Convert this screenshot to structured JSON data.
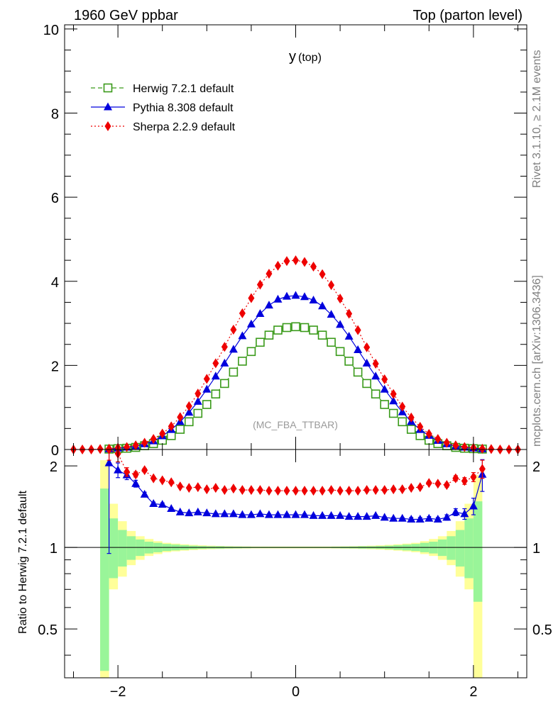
{
  "header": {
    "left": "1960 GeV ppbar",
    "right": "Top (parton level)"
  },
  "side_labels": {
    "rivet": "Rivet 3.1.10, ≥ 2.1M events",
    "mcplots": "mcplots.cern.ch [arXiv:1306.3436]"
  },
  "watermark": "(MC_FBA_TTBAR)",
  "colors": {
    "herwig": "#3a9a1a",
    "pythia": "#0000dd",
    "sherpa": "#ee0000",
    "band_inner": "#99f599",
    "band_outer": "#ffff99"
  },
  "chart_data": [
    {
      "type": "line",
      "title": "y",
      "title_sub": "(top)",
      "xlim": [
        -2.6,
        2.6
      ],
      "ylim": [
        0,
        10.1
      ],
      "yticks": [
        0,
        2,
        4,
        6,
        8,
        10
      ],
      "ytick_labels": [
        "0",
        "2",
        "4",
        "6",
        "8",
        "10"
      ],
      "legend": "top-left",
      "series": [
        {
          "name": "Herwig 7.2.1 default",
          "marker": "open-square",
          "line": "dashed",
          "x": [
            -2.1,
            -2.0,
            -1.9,
            -1.8,
            -1.7,
            -1.6,
            -1.5,
            -1.4,
            -1.3,
            -1.2,
            -1.1,
            -1.0,
            -0.9,
            -0.8,
            -0.7,
            -0.6,
            -0.5,
            -0.4,
            -0.3,
            -0.2,
            -0.1,
            0.0,
            0.1,
            0.2,
            0.3,
            0.4,
            0.5,
            0.6,
            0.7,
            0.8,
            0.9,
            1.0,
            1.1,
            1.2,
            1.3,
            1.4,
            1.5,
            1.6,
            1.7,
            1.8,
            1.9,
            2.0,
            2.1
          ],
          "y": [
            0.01,
            0.02,
            0.03,
            0.05,
            0.09,
            0.14,
            0.22,
            0.33,
            0.48,
            0.66,
            0.86,
            1.07,
            1.32,
            1.57,
            1.84,
            2.1,
            2.33,
            2.55,
            2.72,
            2.84,
            2.9,
            2.92,
            2.9,
            2.84,
            2.72,
            2.55,
            2.33,
            2.1,
            1.84,
            1.57,
            1.32,
            1.07,
            0.86,
            0.66,
            0.48,
            0.33,
            0.22,
            0.14,
            0.09,
            0.05,
            0.03,
            0.02,
            0.01
          ]
        },
        {
          "name": "Pythia 8.308 default",
          "marker": "filled-triangle",
          "line": "solid",
          "x": [
            -2.1,
            -2.0,
            -1.9,
            -1.8,
            -1.7,
            -1.6,
            -1.5,
            -1.4,
            -1.3,
            -1.2,
            -1.1,
            -1.0,
            -0.9,
            -0.8,
            -0.7,
            -0.6,
            -0.5,
            -0.4,
            -0.3,
            -0.2,
            -0.1,
            0.0,
            0.1,
            0.2,
            0.3,
            0.4,
            0.5,
            0.6,
            0.7,
            0.8,
            0.9,
            1.0,
            1.1,
            1.2,
            1.3,
            1.4,
            1.5,
            1.6,
            1.7,
            1.8,
            1.9,
            2.0,
            2.1
          ],
          "y": [
            0.01,
            0.03,
            0.05,
            0.08,
            0.13,
            0.2,
            0.32,
            0.47,
            0.66,
            0.88,
            1.14,
            1.43,
            1.74,
            2.05,
            2.38,
            2.7,
            2.98,
            3.23,
            3.43,
            3.57,
            3.64,
            3.66,
            3.63,
            3.55,
            3.41,
            3.21,
            2.97,
            2.69,
            2.37,
            2.05,
            1.74,
            1.43,
            1.15,
            0.89,
            0.66,
            0.47,
            0.33,
            0.21,
            0.13,
            0.08,
            0.05,
            0.03,
            0.01
          ]
        },
        {
          "name": "Sherpa 2.2.9 default",
          "marker": "filled-diamond",
          "line": "dotted",
          "x": [
            -2.5,
            -2.4,
            -2.3,
            -2.2,
            -2.1,
            -2.0,
            -1.9,
            -1.8,
            -1.7,
            -1.6,
            -1.5,
            -1.4,
            -1.3,
            -1.2,
            -1.1,
            -1.0,
            -0.9,
            -0.8,
            -0.7,
            -0.6,
            -0.5,
            -0.4,
            -0.3,
            -0.2,
            -0.1,
            0.0,
            0.1,
            0.2,
            0.3,
            0.4,
            0.5,
            0.6,
            0.7,
            0.8,
            0.9,
            1.0,
            1.1,
            1.2,
            1.3,
            1.4,
            1.5,
            1.6,
            1.7,
            1.8,
            1.9,
            2.0,
            2.1,
            2.2,
            2.3,
            2.4,
            2.5
          ],
          "y": [
            0.0,
            0.0,
            0.0,
            0.01,
            0.02,
            0.04,
            0.06,
            0.1,
            0.16,
            0.25,
            0.38,
            0.55,
            0.77,
            1.03,
            1.33,
            1.68,
            2.05,
            2.44,
            2.85,
            3.24,
            3.6,
            3.92,
            4.18,
            4.37,
            4.48,
            4.5,
            4.46,
            4.35,
            4.17,
            3.91,
            3.59,
            3.23,
            2.84,
            2.43,
            2.04,
            1.67,
            1.32,
            1.02,
            0.76,
            0.54,
            0.37,
            0.25,
            0.16,
            0.1,
            0.06,
            0.04,
            0.02,
            0.01,
            0.0,
            0.0,
            0.0
          ]
        }
      ]
    },
    {
      "type": "line",
      "ylabel": "Ratio to Herwig 7.2.1 default",
      "xlim": [
        -2.6,
        2.6
      ],
      "ylim": [
        0.33,
        2.3
      ],
      "yscale": "log",
      "reference_line": 1,
      "yticks": [
        0.5,
        1,
        2
      ],
      "ytick_labels": [
        "0.5",
        "1",
        "2"
      ],
      "xticks": [
        -2,
        0,
        2
      ],
      "xtick_labels": [
        "−2",
        "0",
        "2"
      ],
      "bands": {
        "x_edges": [
          -2.2,
          -2.1,
          -2.0,
          -1.9,
          -1.8,
          -1.7,
          -1.6,
          -1.5,
          -1.4,
          -1.3,
          -1.2,
          -1.1,
          -1.0,
          -0.9,
          -0.8,
          -0.7,
          -0.6,
          -0.5,
          -0.4,
          -0.3,
          -0.2,
          -0.1,
          0.0,
          0.1,
          0.2,
          0.3,
          0.4,
          0.5,
          0.6,
          0.7,
          0.8,
          0.9,
          1.0,
          1.1,
          1.2,
          1.3,
          1.4,
          1.5,
          1.6,
          1.7,
          1.8,
          1.9,
          2.0,
          2.1,
          2.2
        ],
        "inner_lo": [
          0.35,
          0.77,
          0.85,
          0.9,
          0.93,
          0.95,
          0.96,
          0.97,
          0.975,
          0.98,
          0.985,
          0.988,
          0.99,
          0.99,
          0.992,
          0.993,
          0.994,
          0.995,
          0.995,
          0.995,
          0.995,
          0.995,
          0.995,
          0.995,
          0.995,
          0.995,
          0.994,
          0.993,
          0.992,
          0.99,
          0.99,
          0.988,
          0.985,
          0.98,
          0.975,
          0.97,
          0.96,
          0.95,
          0.93,
          0.9,
          0.85,
          0.77,
          0.63
        ],
        "inner_hi": [
          1.65,
          1.28,
          1.16,
          1.1,
          1.07,
          1.05,
          1.04,
          1.03,
          1.025,
          1.02,
          1.015,
          1.012,
          1.01,
          1.01,
          1.008,
          1.007,
          1.006,
          1.005,
          1.005,
          1.005,
          1.005,
          1.005,
          1.005,
          1.005,
          1.005,
          1.005,
          1.006,
          1.007,
          1.008,
          1.01,
          1.01,
          1.012,
          1.015,
          1.02,
          1.025,
          1.03,
          1.04,
          1.05,
          1.07,
          1.1,
          1.16,
          1.28,
          1.48
        ],
        "outer_lo": [
          0.33,
          0.7,
          0.78,
          0.86,
          0.9,
          0.93,
          0.945,
          0.96,
          0.967,
          0.973,
          0.978,
          0.982,
          0.985,
          0.987,
          0.989,
          0.99,
          0.991,
          0.992,
          0.992,
          0.992,
          0.992,
          0.992,
          0.992,
          0.992,
          0.992,
          0.992,
          0.991,
          0.99,
          0.989,
          0.987,
          0.985,
          0.982,
          0.978,
          0.973,
          0.967,
          0.96,
          0.945,
          0.93,
          0.9,
          0.86,
          0.78,
          0.7,
          0.33
        ],
        "outer_hi": [
          2.1,
          1.45,
          1.25,
          1.15,
          1.1,
          1.075,
          1.055,
          1.04,
          1.033,
          1.027,
          1.022,
          1.018,
          1.015,
          1.013,
          1.011,
          1.01,
          1.009,
          1.008,
          1.008,
          1.008,
          1.008,
          1.008,
          1.008,
          1.008,
          1.008,
          1.008,
          1.009,
          1.01,
          1.011,
          1.013,
          1.015,
          1.018,
          1.022,
          1.027,
          1.033,
          1.04,
          1.055,
          1.075,
          1.1,
          1.15,
          1.25,
          1.45,
          1.85
        ]
      },
      "series": [
        {
          "name": "Pythia 8.308 default",
          "x": [
            -2.1,
            -2.0,
            -1.9,
            -1.8,
            -1.7,
            -1.6,
            -1.5,
            -1.4,
            -1.3,
            -1.2,
            -1.1,
            -1.0,
            -0.9,
            -0.8,
            -0.7,
            -0.6,
            -0.5,
            -0.4,
            -0.3,
            -0.2,
            -0.1,
            0.0,
            0.1,
            0.2,
            0.3,
            0.4,
            0.5,
            0.6,
            0.7,
            0.8,
            0.9,
            1.0,
            1.1,
            1.2,
            1.3,
            1.4,
            1.5,
            1.6,
            1.7,
            1.8,
            1.9,
            2.0,
            2.1
          ],
          "y": [
            2.05,
            1.93,
            1.85,
            1.72,
            1.57,
            1.45,
            1.44,
            1.39,
            1.35,
            1.34,
            1.35,
            1.34,
            1.33,
            1.33,
            1.33,
            1.32,
            1.32,
            1.33,
            1.32,
            1.32,
            1.32,
            1.32,
            1.32,
            1.31,
            1.31,
            1.31,
            1.31,
            1.3,
            1.3,
            1.3,
            1.31,
            1.29,
            1.28,
            1.28,
            1.27,
            1.27,
            1.28,
            1.27,
            1.29,
            1.35,
            1.33,
            1.42,
            1.86
          ],
          "err": [
            1.1,
            0.12,
            0.07,
            0.05,
            0.03,
            0.02,
            0.02,
            0.01,
            0.01,
            0.01,
            0.01,
            0.01,
            0.01,
            0.01,
            0.01,
            0.01,
            0.01,
            0.01,
            0.01,
            0.01,
            0.01,
            0.01,
            0.01,
            0.01,
            0.01,
            0.01,
            0.01,
            0.01,
            0.01,
            0.01,
            0.01,
            0.01,
            0.01,
            0.01,
            0.02,
            0.02,
            0.02,
            0.02,
            0.03,
            0.04,
            0.06,
            0.1,
            0.25
          ]
        },
        {
          "name": "Sherpa 2.2.9 default",
          "x": [
            -2.1,
            -2.0,
            -1.9,
            -1.8,
            -1.7,
            -1.6,
            -1.5,
            -1.4,
            -1.3,
            -1.2,
            -1.1,
            -1.0,
            -0.9,
            -0.8,
            -0.7,
            -0.6,
            -0.5,
            -0.4,
            -0.3,
            -0.2,
            -0.1,
            0.0,
            0.1,
            0.2,
            0.3,
            0.4,
            0.5,
            0.6,
            0.7,
            0.8,
            0.9,
            1.0,
            1.1,
            1.2,
            1.3,
            1.4,
            1.5,
            1.6,
            1.7,
            1.8,
            1.9,
            2.0,
            2.1
          ],
          "y": [
            2.4,
            2.22,
            1.9,
            1.86,
            1.93,
            1.8,
            1.77,
            1.74,
            1.68,
            1.66,
            1.67,
            1.64,
            1.66,
            1.63,
            1.65,
            1.63,
            1.63,
            1.63,
            1.62,
            1.62,
            1.62,
            1.62,
            1.62,
            1.62,
            1.62,
            1.63,
            1.62,
            1.62,
            1.62,
            1.63,
            1.63,
            1.63,
            1.64,
            1.64,
            1.66,
            1.67,
            1.73,
            1.72,
            1.7,
            1.8,
            1.76,
            1.82,
            1.95
          ],
          "err": [
            0.3,
            0.15,
            0.07,
            0.04,
            0.03,
            0.02,
            0.02,
            0.02,
            0.01,
            0.01,
            0.01,
            0.01,
            0.01,
            0.01,
            0.01,
            0.01,
            0.01,
            0.01,
            0.01,
            0.01,
            0.01,
            0.01,
            0.01,
            0.01,
            0.01,
            0.01,
            0.01,
            0.01,
            0.01,
            0.01,
            0.01,
            0.01,
            0.01,
            0.01,
            0.01,
            0.02,
            0.02,
            0.02,
            0.03,
            0.04,
            0.05,
            0.07,
            0.15
          ]
        }
      ]
    }
  ]
}
